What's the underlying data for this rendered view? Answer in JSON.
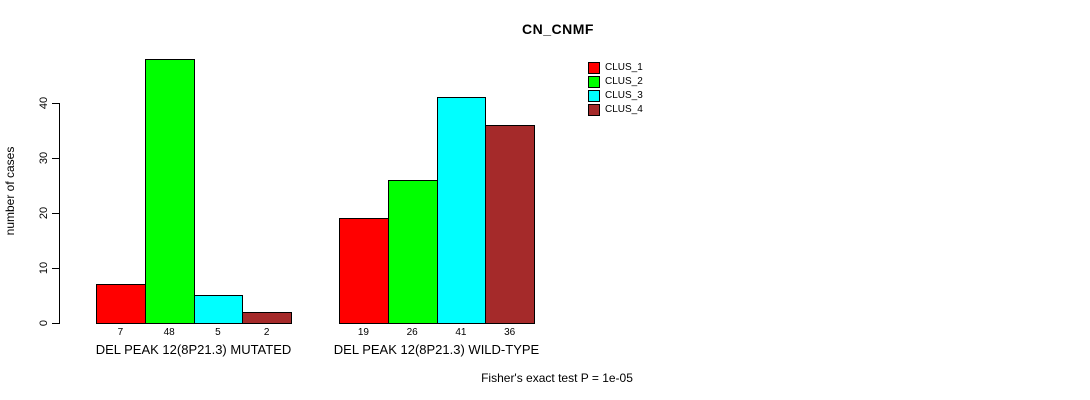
{
  "chart_data": {
    "type": "bar",
    "title": "CN_CNMF",
    "ylabel": "number of cases",
    "xlabel": "",
    "ylim": [
      0,
      40
    ],
    "yticks": [
      0,
      10,
      20,
      30,
      40
    ],
    "grid": false,
    "legend_position": "top-right",
    "series": [
      {
        "name": "CLUS_1",
        "color": "#FF0000"
      },
      {
        "name": "CLUS_2",
        "color": "#00FF00"
      },
      {
        "name": "CLUS_3",
        "color": "#00FFFF"
      },
      {
        "name": "CLUS_4",
        "color": "#A52A2A"
      }
    ],
    "groups": [
      {
        "label": "DEL PEAK 12(8P21.3) MUTATED",
        "values": [
          7,
          48,
          5,
          2
        ]
      },
      {
        "label": "DEL PEAK 12(8P21.3) WILD-TYPE",
        "values": [
          19,
          26,
          41,
          36
        ]
      }
    ],
    "annotation": "Fisher's exact test P = 1e-05"
  }
}
